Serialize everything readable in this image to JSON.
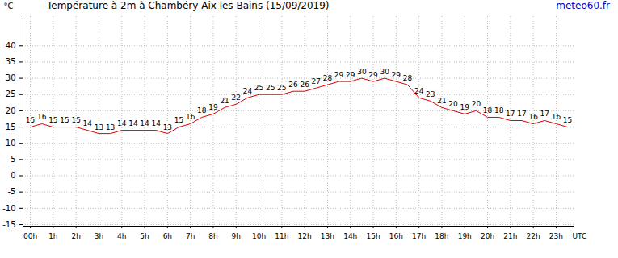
{
  "chart_data": {
    "type": "line",
    "title": "Température à 2m à Chambéry Aix les Bains (15/09/2019)",
    "annotations": [
      "meteo60.fr"
    ],
    "x_label": "UTC",
    "y_label": "°C",
    "x": [
      0,
      0.5,
      1,
      1.5,
      2,
      2.5,
      3,
      3.5,
      4,
      4.5,
      5,
      5.5,
      6,
      6.5,
      7,
      7.5,
      8,
      8.5,
      9,
      9.5,
      10,
      10.5,
      11,
      11.5,
      12,
      12.5,
      13,
      13.5,
      14,
      14.5,
      15,
      15.5,
      16,
      16.5,
      17,
      17.5,
      18,
      18.5,
      19,
      19.5,
      20,
      20.5,
      21,
      21.5,
      22,
      22.5,
      23,
      23.5
    ],
    "values": [
      15,
      16,
      15,
      15,
      15,
      14,
      13,
      13,
      14,
      14,
      14,
      14,
      13,
      15,
      16,
      18,
      19,
      21,
      22,
      24,
      25,
      25,
      25,
      26,
      26,
      27,
      28,
      29,
      29,
      30,
      29,
      30,
      29,
      28,
      24,
      23,
      21,
      20,
      19,
      20,
      18,
      18,
      17,
      17,
      16,
      17,
      16,
      15
    ],
    "color": "#e00000",
    "data_labels": true,
    "grid": true,
    "xlim": [
      -0.32,
      23.78
    ],
    "xticks": [
      {
        "value": 0,
        "label": "00h"
      },
      {
        "value": 1,
        "label": "1h"
      },
      {
        "value": 2,
        "label": "2h"
      },
      {
        "value": 3,
        "label": "3h"
      },
      {
        "value": 4,
        "label": "4h"
      },
      {
        "value": 5,
        "label": "5h"
      },
      {
        "value": 6,
        "label": "6h"
      },
      {
        "value": 7,
        "label": "7h"
      },
      {
        "value": 8,
        "label": "8h"
      },
      {
        "value": 9,
        "label": "9h"
      },
      {
        "value": 10,
        "label": "10h"
      },
      {
        "value": 11,
        "label": "11h"
      },
      {
        "value": 12,
        "label": "12h"
      },
      {
        "value": 13,
        "label": "13h"
      },
      {
        "value": 14,
        "label": "14h"
      },
      {
        "value": 15,
        "label": "15h"
      },
      {
        "value": 16,
        "label": "16h"
      },
      {
        "value": 17,
        "label": "17h"
      },
      {
        "value": 18,
        "label": "18h"
      },
      {
        "value": 19,
        "label": "19h"
      },
      {
        "value": 20,
        "label": "20h"
      },
      {
        "value": 21,
        "label": "21h"
      },
      {
        "value": 22,
        "label": "22h"
      },
      {
        "value": 23,
        "label": "23h"
      }
    ],
    "ylim": [
      -15.5,
      49
    ],
    "yticks": [
      -15,
      -10,
      -5,
      0,
      5,
      10,
      15,
      20,
      25,
      30,
      35,
      40
    ]
  }
}
